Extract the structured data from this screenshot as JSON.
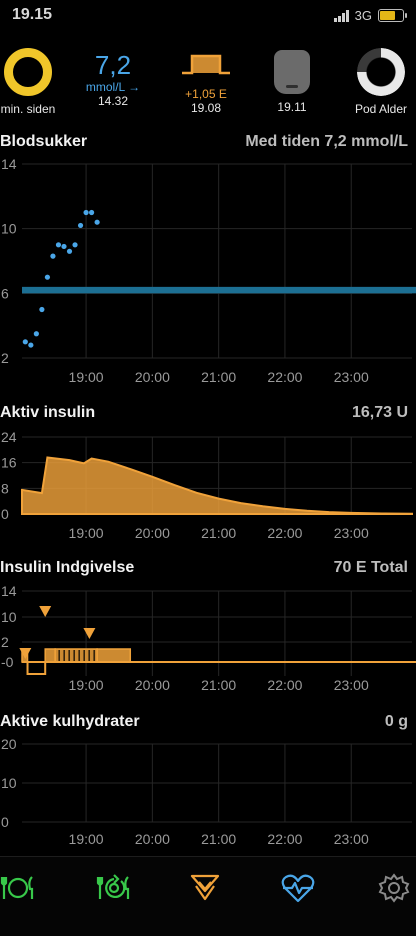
{
  "status_bar": {
    "time": "19.15",
    "network": "3G",
    "battery_level": 0.7
  },
  "hud": {
    "cob": {
      "label": "min. siden",
      "icon": "carbs-ring-icon",
      "color": "#f0c62a"
    },
    "bg": {
      "value": "7,2",
      "unit": "mmol/L →",
      "time": "14.32",
      "color": "#4aa6e8"
    },
    "temp_basal": {
      "icon": "temp-basal-icon",
      "rate": "+1,05 E",
      "time": "19.08",
      "color": "#f0a23a"
    },
    "pod": {
      "icon": "pod-icon",
      "time": "19.11"
    },
    "pod_age": {
      "label": "Pod Alder",
      "icon": "pod-age-ring-icon",
      "fraction_remaining": 0.75
    }
  },
  "sections": {
    "glucose": {
      "title": "Blodsukker",
      "value": "Med tiden 7,2 mmol/L"
    },
    "iob": {
      "title": "Aktiv insulin",
      "value": "16,73 U"
    },
    "dose": {
      "title": "Insulin Indgivelse",
      "value": "70 E Total"
    },
    "cob": {
      "title": "Aktive kulhydrater",
      "value": "0 g"
    }
  },
  "tabbar": [
    {
      "name": "carbs-tab",
      "icon": "fork-plate-knife-icon",
      "color": "#38c84a"
    },
    {
      "name": "meal-bolus-tab",
      "icon": "fork-plate-knife-arrow-icon",
      "color": "#38c84a"
    },
    {
      "name": "bolus-tab",
      "icon": "bolus-triangles-icon",
      "color": "#f0a23a"
    },
    {
      "name": "status-tab",
      "icon": "heart-pulse-icon",
      "color": "#4aa6e8"
    },
    {
      "name": "settings-tab",
      "icon": "gear-icon",
      "color": "#8a8a8a"
    }
  ],
  "chart_data": [
    {
      "id": "glucose",
      "type": "scatter",
      "xlabel": "",
      "ylabel": "",
      "x_ticks": [
        "19:00",
        "20:00",
        "21:00",
        "22:00",
        "23:00"
      ],
      "x_range": [
        "18:02",
        "23:55"
      ],
      "y_ticks": [
        "2",
        "6",
        "10",
        "14"
      ],
      "ylim": [
        2,
        14
      ],
      "target_range": [
        6,
        6.4
      ],
      "target_color": "#1c6f93",
      "point_color": "#4aa6e8",
      "grid": true,
      "points": [
        {
          "x": "18:05",
          "y": 3.0
        },
        {
          "x": "18:10",
          "y": 2.8
        },
        {
          "x": "18:15",
          "y": 3.5
        },
        {
          "x": "18:20",
          "y": 5.0
        },
        {
          "x": "18:25",
          "y": 7.0
        },
        {
          "x": "18:30",
          "y": 8.3
        },
        {
          "x": "18:35",
          "y": 9.0
        },
        {
          "x": "18:40",
          "y": 8.9
        },
        {
          "x": "18:45",
          "y": 8.6
        },
        {
          "x": "18:50",
          "y": 9.0
        },
        {
          "x": "18:55",
          "y": 10.2
        },
        {
          "x": "19:00",
          "y": 11.0
        },
        {
          "x": "19:05",
          "y": 11.0
        },
        {
          "x": "19:10",
          "y": 10.4
        }
      ]
    },
    {
      "id": "iob",
      "type": "area",
      "xlabel": "",
      "ylabel": "",
      "x_ticks": [
        "19:00",
        "20:00",
        "21:00",
        "22:00",
        "23:00"
      ],
      "x_range": [
        "18:02",
        "23:55"
      ],
      "y_ticks": [
        "0",
        "8",
        "16",
        "24"
      ],
      "ylim": [
        0,
        24
      ],
      "color": "#f0a23a",
      "grid": true,
      "points": [
        {
          "x": "18:02",
          "y": 7.5
        },
        {
          "x": "18:20",
          "y": 6.5
        },
        {
          "x": "18:25",
          "y": 17.6
        },
        {
          "x": "18:45",
          "y": 16.8
        },
        {
          "x": "18:58",
          "y": 15.8
        },
        {
          "x": "19:05",
          "y": 17.3
        },
        {
          "x": "19:20",
          "y": 16.3
        },
        {
          "x": "19:40",
          "y": 14.0
        },
        {
          "x": "20:00",
          "y": 11.6
        },
        {
          "x": "20:20",
          "y": 9.0
        },
        {
          "x": "20:40",
          "y": 6.6
        },
        {
          "x": "21:00",
          "y": 4.8
        },
        {
          "x": "21:20",
          "y": 3.4
        },
        {
          "x": "21:40",
          "y": 2.4
        },
        {
          "x": "22:00",
          "y": 1.6
        },
        {
          "x": "22:20",
          "y": 1.0
        },
        {
          "x": "22:40",
          "y": 0.6
        },
        {
          "x": "23:00",
          "y": 0.35
        },
        {
          "x": "23:30",
          "y": 0.15
        },
        {
          "x": "23:55",
          "y": 0.1
        }
      ]
    },
    {
      "id": "dose",
      "type": "bar",
      "xlabel": "",
      "ylabel": "",
      "x_ticks": [
        "19:00",
        "20:00",
        "21:00",
        "22:00",
        "23:00"
      ],
      "x_range": [
        "18:02",
        "23:55"
      ],
      "y_ticks": [
        "-0",
        "2",
        "10",
        "14"
      ],
      "color": "#f0a23a",
      "grid": true,
      "basal_blocks": [
        {
          "start": "18:02",
          "end": "18:07",
          "value": "+"
        },
        {
          "start": "18:07",
          "end": "18:23",
          "value": "-"
        },
        {
          "start": "18:23",
          "end": "18:32",
          "value": "+"
        },
        {
          "start": "18:32",
          "end": "19:10",
          "value": "+",
          "striped": true
        },
        {
          "start": "19:10",
          "end": "19:40",
          "value": "+"
        }
      ],
      "boluses": [
        {
          "x": "18:05",
          "level": "low"
        },
        {
          "x": "18:23",
          "level": "high"
        },
        {
          "x": "19:03",
          "level": "mid"
        }
      ]
    },
    {
      "id": "cob",
      "type": "area",
      "xlabel": "",
      "ylabel": "",
      "x_ticks": [
        "19:00",
        "20:00",
        "21:00",
        "22:00",
        "23:00"
      ],
      "x_range": [
        "18:02",
        "23:55"
      ],
      "y_ticks": [
        "0",
        "10",
        "20"
      ],
      "ylim": [
        0,
        20
      ],
      "grid": true,
      "points": []
    }
  ]
}
